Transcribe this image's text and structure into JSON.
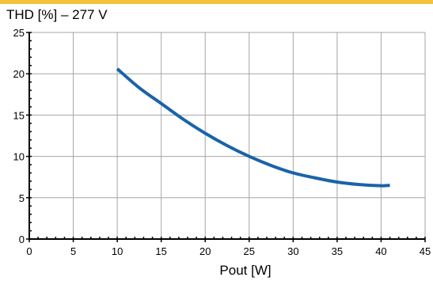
{
  "chart_data": {
    "type": "line",
    "title": "THD [%] – 277 V",
    "xlabel": "Pout [W]",
    "ylabel": "",
    "xlim": [
      0,
      45
    ],
    "ylim": [
      0,
      25
    ],
    "x_ticks": [
      0,
      5,
      10,
      15,
      20,
      25,
      30,
      35,
      40,
      45
    ],
    "y_ticks": [
      0,
      5,
      10,
      15,
      20,
      25
    ],
    "grid": true,
    "series": [
      {
        "color": "#1a63a8",
        "x": [
          10,
          12.5,
          15,
          17.5,
          20,
          22.5,
          25,
          27.5,
          30,
          32.5,
          35,
          37.5,
          40,
          41
        ],
        "y": [
          20.6,
          18.3,
          16.4,
          14.5,
          12.8,
          11.3,
          10.0,
          8.9,
          8.0,
          7.4,
          6.9,
          6.6,
          6.45,
          6.5
        ]
      }
    ]
  },
  "colors": {
    "band": "#f3c13a",
    "grid": "#a6a6a6",
    "axis": "#000000",
    "line": "#1a63a8"
  }
}
